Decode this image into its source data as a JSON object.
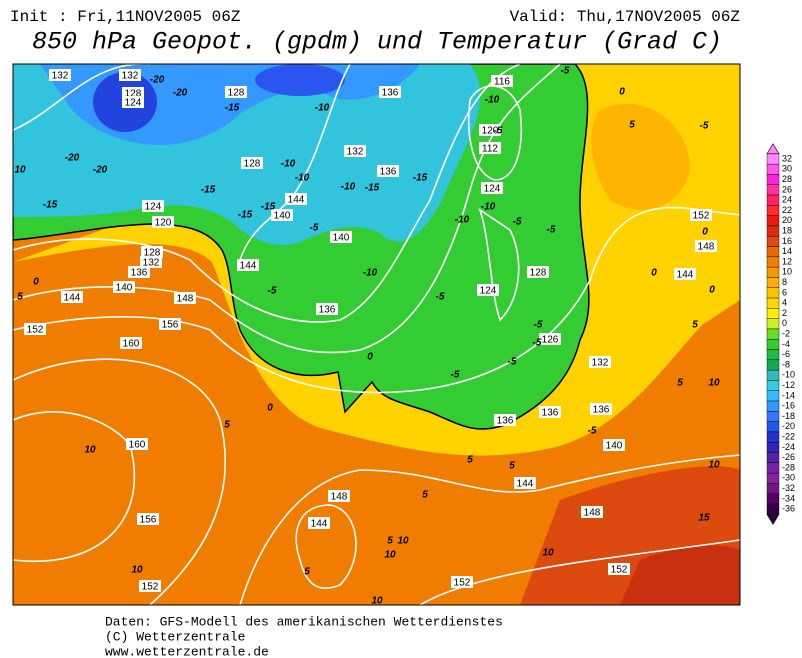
{
  "header": {
    "init": "Init : Fri,11NOV2005 06Z",
    "valid": "Valid: Thu,17NOV2005 06Z",
    "title": "850 hPa Geopot. (gpdm) und Temperatur (Grad C)"
  },
  "map": {
    "geopot_labels": [
      132,
      132,
      128,
      124,
      128,
      136,
      116,
      132,
      136,
      120,
      112,
      124,
      128,
      140,
      144,
      124,
      120,
      128,
      132,
      136,
      140,
      144,
      148,
      152,
      156,
      160,
      136,
      140,
      144,
      128,
      124,
      126,
      132,
      136,
      136,
      136,
      140,
      144,
      148,
      152,
      148,
      144,
      160,
      156,
      148,
      144,
      152,
      152,
      152
    ],
    "temp_labels": [
      -20,
      -20,
      -15,
      -10,
      -20,
      -20,
      -15,
      -10,
      -10,
      -10,
      -15,
      -15,
      -10,
      -5,
      -5,
      -10,
      -10,
      -5,
      -5,
      0,
      -5,
      -15,
      -15,
      -15,
      -5,
      -10,
      -5,
      -5,
      -5,
      -5,
      -5,
      5,
      10,
      0,
      0,
      0,
      5,
      0,
      -5,
      0,
      5,
      10,
      5,
      5,
      5,
      10,
      15,
      5,
      10,
      10,
      10,
      10,
      10,
      10,
      5,
      5,
      0,
      -5,
      5
    ]
  },
  "colorbar": {
    "values": [
      32,
      30,
      28,
      26,
      24,
      22,
      20,
      18,
      16,
      14,
      12,
      10,
      8,
      6,
      4,
      2,
      0,
      -2,
      -4,
      -6,
      -8,
      -10,
      -12,
      -14,
      -16,
      -18,
      -20,
      -22,
      -24,
      -26,
      -28,
      -30,
      -32,
      -34,
      -36
    ],
    "colors": [
      "#ff88ff",
      "#ff55ee",
      "#ff22dd",
      "#ff3399",
      "#ff2266",
      "#ff2a2a",
      "#ee1a10",
      "#dd2a10",
      "#e04a10",
      "#e86a00",
      "#f08000",
      "#f49a00",
      "#ffae00",
      "#ffc400",
      "#ffd800",
      "#ffee00",
      "#ccee22",
      "#66dd22",
      "#33cc33",
      "#22bb44",
      "#11aa55",
      "#33bbbb",
      "#33ccdd",
      "#33bbff",
      "#3399ff",
      "#3377ff",
      "#2255ee",
      "#2233cc",
      "#3322bb",
      "#5522aa",
      "#7722aa",
      "#882299",
      "#771188",
      "#550066",
      "#330044"
    ]
  },
  "footer": {
    "line1": "Daten: GFS-Modell des amerikanischen Wetterdienstes",
    "line2": "(C) Wetterzentrale",
    "line3": "www.wetterzentrale.de"
  }
}
